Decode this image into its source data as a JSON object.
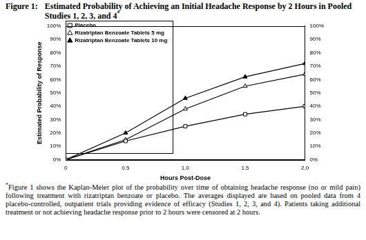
{
  "figure": {
    "label": "Figure 1:",
    "title": "Estimated Probability of Achieving an Initial Headache Response by 2 Hours in Pooled Studies 1, 2, 3, and 4",
    "note_mark": "*"
  },
  "chart_data": {
    "type": "line",
    "x_label": "Hours Post-Dose",
    "y_label": "Estimated Probability of Response",
    "x": [
      0,
      0.5,
      1,
      1.5,
      2
    ],
    "series": [
      {
        "name": "Placebo",
        "color": "#000000",
        "marker": "square-open",
        "values": [
          0,
          14,
          25,
          34,
          40
        ]
      },
      {
        "name": "Rizatriptan Benzoate Tablets 5 mg",
        "color": "#000000",
        "marker": "triangle-open",
        "values": [
          0,
          15,
          38,
          55,
          64
        ]
      },
      {
        "name": "Rizatriptan Benzoate Tablets 10 mg",
        "color": "#000000",
        "marker": "triangle",
        "values": [
          0,
          20,
          46,
          62,
          72
        ]
      }
    ],
    "xlim": [
      0,
      2
    ],
    "xticks": [
      0,
      0.5,
      {
        "value": 1,
        "label": "1.0"
      },
      1.5,
      {
        "value": 2,
        "label": "2.0"
      }
    ],
    "ylim": [
      0,
      100
    ],
    "yticks": [
      {
        "value": 0,
        "label": "0%"
      },
      {
        "value": 10,
        "label": "10%"
      },
      {
        "value": 20,
        "label": "20%"
      },
      {
        "value": 30,
        "label": "30%"
      },
      {
        "value": 40,
        "label": "40%"
      },
      {
        "value": 50,
        "label": "50%"
      },
      {
        "value": 60,
        "label": "60%"
      },
      {
        "value": 70,
        "label": "70%"
      },
      {
        "value": 80,
        "label": "80%"
      },
      {
        "value": 90,
        "label": "90%"
      },
      {
        "value": 100,
        "label": "100%"
      }
    ],
    "y2lim": [
      0,
      100
    ],
    "y2ticks": [
      {
        "value": 0,
        "label": "0%"
      },
      {
        "value": 10,
        "label": "10%"
      },
      {
        "value": 20,
        "label": "20%"
      },
      {
        "value": 30,
        "label": "30%"
      },
      {
        "value": 40,
        "label": "40%"
      },
      {
        "value": 50,
        "label": "50%"
      },
      {
        "value": 60,
        "label": "60%"
      },
      {
        "value": 70,
        "label": "70%"
      },
      {
        "value": 80,
        "label": "80%"
      },
      {
        "value": 90,
        "label": "90%"
      },
      {
        "value": 100,
        "label": "100%"
      }
    ],
    "grid": false,
    "legend": "top-left"
  },
  "footnote": {
    "mark": "*",
    "text": "Figure 1 shows the Kaplan-Meier plot of the probability over time of obtaining headache response (no or mild pain) following treatment with rizatriptan benzoate or placebo. The averages displayed are based on pooled data from 4 placebo-controlled, outpatient trials providing evidence of efficacy (Studies 1, 2, 3, and 4). Patients taking additional treatment or not achieving headache response prior to 2 hours were censored at 2 hours."
  }
}
